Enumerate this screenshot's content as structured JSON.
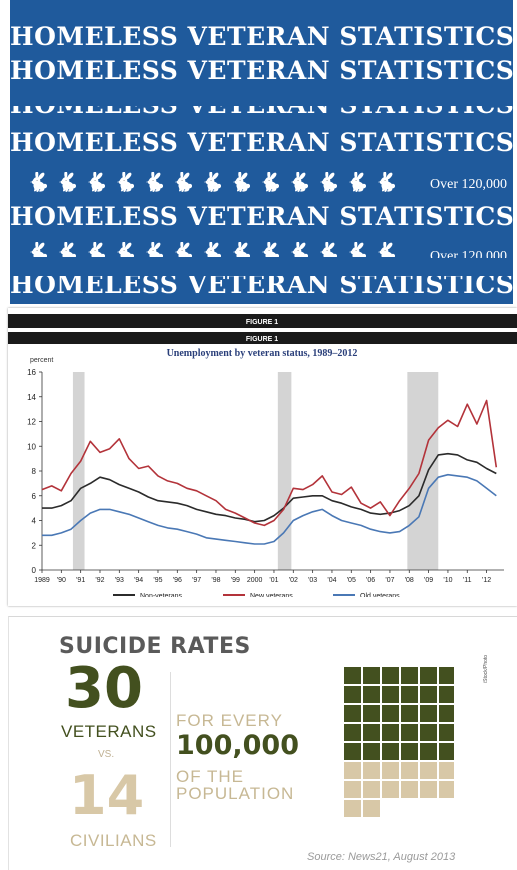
{
  "banner": {
    "heading": "HOMELESS VETERAN STATISTICS",
    "count_text": "Over 120,000",
    "icon": "rabbit-icon"
  },
  "colors": {
    "banner_bg": "#1f5a9c",
    "non_veterans": "#2b2b2b",
    "new_veterans": "#b3333a",
    "old_veterans": "#4a78b5",
    "recession_band": "#d4d4d4",
    "veterans_square": "#43501f",
    "civilians_square": "#d8c8a7"
  },
  "chart_data": {
    "type": "line",
    "figure_label": "FIGURE 1",
    "title": "Unemployment by veteran status, 1989–2012",
    "ylabel": "percent",
    "ylim": [
      0,
      16
    ],
    "yticks": [
      0,
      2,
      4,
      6,
      8,
      10,
      12,
      14,
      16
    ],
    "xlim": [
      1989,
      2012.9
    ],
    "xtick_labels": [
      "1989",
      "'90",
      "'91",
      "'92",
      "'93",
      "'94",
      "'95",
      "'96",
      "'97",
      "'98",
      "'99",
      "2000",
      "'01",
      "'02",
      "'03",
      "'04",
      "'05",
      "'06",
      "'07",
      "'08",
      "'09",
      "'10",
      "'11",
      "'12"
    ],
    "recessions": [
      [
        1990.6,
        1991.2
      ],
      [
        2001.2,
        2001.9
      ],
      [
        2007.9,
        2009.5
      ]
    ],
    "series": [
      {
        "name": "Non-veterans",
        "color": "#2b2b2b",
        "x": [
          1989,
          1989.5,
          1990,
          1990.5,
          1991,
          1991.5,
          1992,
          1992.5,
          1993,
          1993.5,
          1994,
          1994.5,
          1995,
          1995.5,
          1996,
          1996.5,
          1997,
          1997.5,
          1998,
          1998.5,
          1999,
          1999.5,
          2000,
          2000.5,
          2001,
          2001.5,
          2002,
          2002.5,
          2003,
          2003.5,
          2004,
          2004.5,
          2005,
          2005.5,
          2006,
          2006.5,
          2007,
          2007.5,
          2008,
          2008.5,
          2009,
          2009.5,
          2010,
          2010.5,
          2011,
          2011.5,
          2012,
          2012.5
        ],
        "y": [
          5.0,
          5.0,
          5.2,
          5.6,
          6.6,
          7.0,
          7.5,
          7.3,
          6.9,
          6.6,
          6.3,
          5.9,
          5.6,
          5.5,
          5.4,
          5.2,
          4.9,
          4.7,
          4.5,
          4.4,
          4.2,
          4.1,
          3.9,
          4.0,
          4.4,
          5.0,
          5.8,
          5.9,
          6.0,
          6.0,
          5.6,
          5.4,
          5.1,
          4.9,
          4.6,
          4.5,
          4.6,
          4.8,
          5.2,
          6.0,
          8.1,
          9.3,
          9.4,
          9.3,
          8.9,
          8.7,
          8.2,
          7.8
        ]
      },
      {
        "name": "New veterans",
        "color": "#b3333a",
        "x": [
          1989,
          1989.5,
          1990,
          1990.5,
          1991,
          1991.5,
          1992,
          1992.5,
          1993,
          1993.5,
          1994,
          1994.5,
          1995,
          1995.5,
          1996,
          1996.5,
          1997,
          1997.5,
          1998,
          1998.5,
          1999,
          1999.5,
          2000,
          2000.5,
          2001,
          2001.5,
          2002,
          2002.5,
          2003,
          2003.5,
          2004,
          2004.5,
          2005,
          2005.5,
          2006,
          2006.5,
          2007,
          2007.5,
          2008,
          2008.5,
          2009,
          2009.5,
          2010,
          2010.5,
          2011,
          2011.5,
          2012,
          2012.5
        ],
        "y": [
          6.5,
          6.8,
          6.4,
          7.8,
          8.8,
          10.4,
          9.5,
          9.8,
          10.6,
          9.0,
          8.2,
          8.4,
          7.6,
          7.2,
          7.0,
          6.6,
          6.4,
          6.0,
          5.6,
          4.9,
          4.6,
          4.2,
          3.8,
          3.6,
          4.0,
          4.9,
          6.6,
          6.5,
          6.9,
          7.6,
          6.3,
          6.1,
          6.7,
          5.4,
          5.0,
          5.5,
          4.4,
          5.6,
          6.6,
          7.8,
          10.5,
          11.5,
          12.1,
          11.6,
          13.4,
          11.8,
          13.7,
          8.3
        ]
      },
      {
        "name": "Old veterans",
        "color": "#4a78b5",
        "x": [
          1989,
          1989.5,
          1990,
          1990.5,
          1991,
          1991.5,
          1992,
          1992.5,
          1993,
          1993.5,
          1994,
          1994.5,
          1995,
          1995.5,
          1996,
          1996.5,
          1997,
          1997.5,
          1998,
          1998.5,
          1999,
          1999.5,
          2000,
          2000.5,
          2001,
          2001.5,
          2002,
          2002.5,
          2003,
          2003.5,
          2004,
          2004.5,
          2005,
          2005.5,
          2006,
          2006.5,
          2007,
          2007.5,
          2008,
          2008.5,
          2009,
          2009.5,
          2010,
          2010.5,
          2011,
          2011.5,
          2012,
          2012.5
        ],
        "y": [
          2.8,
          2.8,
          3.0,
          3.3,
          4.0,
          4.6,
          4.9,
          4.9,
          4.7,
          4.5,
          4.2,
          3.9,
          3.6,
          3.4,
          3.3,
          3.1,
          2.9,
          2.6,
          2.5,
          2.4,
          2.3,
          2.2,
          2.1,
          2.1,
          2.3,
          3.0,
          4.0,
          4.4,
          4.7,
          4.9,
          4.4,
          4.0,
          3.8,
          3.6,
          3.3,
          3.1,
          3.0,
          3.1,
          3.6,
          4.3,
          6.6,
          7.5,
          7.7,
          7.6,
          7.5,
          7.2,
          6.6,
          6.0
        ]
      }
    ]
  },
  "suicide": {
    "title": "SUICIDE RATES",
    "veterans_number": "30",
    "veterans_label": "VETERANS",
    "vs": "VS.",
    "civilians_number": "14",
    "civilians_label": "CIVILIANS",
    "for_every": "FOR EVERY",
    "population_number": "100,000",
    "of_the": "OF THE",
    "population": "POPULATION",
    "source": "Source: News21, August 2013",
    "credit": "iStock/Photo",
    "veterans_rate": 30,
    "civilians_rate": 14
  }
}
